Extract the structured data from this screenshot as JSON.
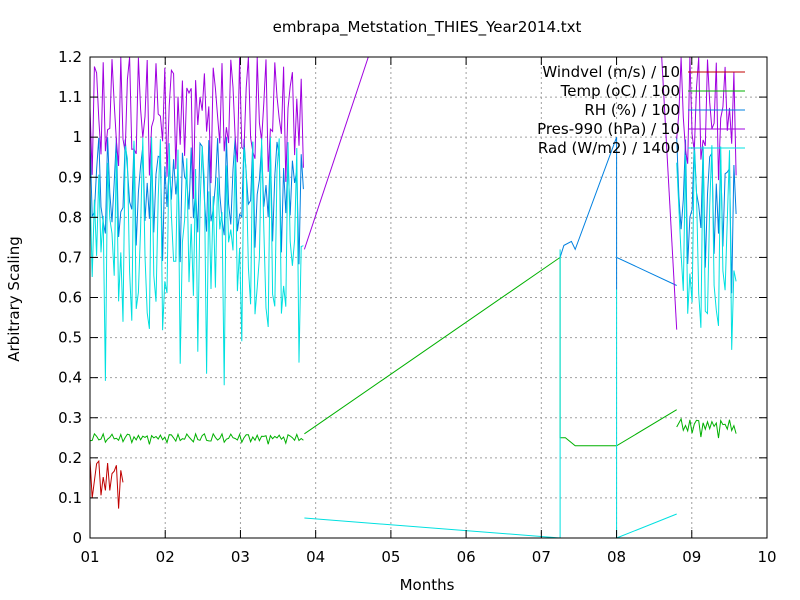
{
  "chart_data": {
    "type": "line",
    "title": "embrapa_Metstation_THIES_Year2014.txt",
    "xlabel": "Months",
    "ylabel": "Arbitrary Scaling",
    "xlim": [
      1,
      10
    ],
    "ylim": [
      0,
      1.2
    ],
    "x_ticks": [
      {
        "value": 1,
        "label": "01"
      },
      {
        "value": 2,
        "label": "02"
      },
      {
        "value": 3,
        "label": "03"
      },
      {
        "value": 4,
        "label": "04"
      },
      {
        "value": 5,
        "label": "05"
      },
      {
        "value": 6,
        "label": "06"
      },
      {
        "value": 7,
        "label": "07"
      },
      {
        "value": 8,
        "label": "08"
      },
      {
        "value": 9,
        "label": "09"
      },
      {
        "value": 10,
        "label": "10"
      }
    ],
    "y_ticks": [
      {
        "value": 0,
        "label": "0"
      },
      {
        "value": 0.1,
        "label": "0.1"
      },
      {
        "value": 0.2,
        "label": "0.2"
      },
      {
        "value": 0.3,
        "label": "0.3"
      },
      {
        "value": 0.4,
        "label": "0.4"
      },
      {
        "value": 0.5,
        "label": "0.5"
      },
      {
        "value": 0.6,
        "label": "0.6"
      },
      {
        "value": 0.7,
        "label": "0.7"
      },
      {
        "value": 0.8,
        "label": "0.8"
      },
      {
        "value": 0.9,
        "label": "0.9"
      },
      {
        "value": 1,
        "label": "1"
      },
      {
        "value": 1.1,
        "label": "1.1"
      },
      {
        "value": 1.2,
        "label": "1.2"
      }
    ],
    "grid": true,
    "legend_position": "top-right",
    "series": [
      {
        "name": "Windvel (m/s) / 10",
        "color": "#c00000",
        "segments": [
          {
            "mode": "band",
            "x_start": 1.0,
            "x_end": 1.45,
            "low": 0.0,
            "high": 0.2
          },
          {
            "mode": "points",
            "x": [
              1.45,
              3.85,
              7.25,
              8.0,
              8.8,
              9.6
            ],
            "y": [
              0.0,
              0.0,
              0.0,
              0.0,
              0.0,
              0.0
            ]
          }
        ]
      },
      {
        "name": "Temp (oC) / 100",
        "color": "#00b000",
        "segments": [
          {
            "mode": "band",
            "x_start": 1.0,
            "x_end": 3.85,
            "low": 0.22,
            "high": 0.26
          },
          {
            "mode": "points",
            "x": [
              3.85,
              7.25,
              7.25,
              7.32,
              7.45,
              8.0,
              8.8
            ],
            "y": [
              0.26,
              0.7,
              0.25,
              0.25,
              0.23,
              0.23,
              0.32
            ]
          },
          {
            "mode": "band",
            "x_start": 8.8,
            "x_end": 9.6,
            "low": 0.22,
            "high": 0.3
          }
        ]
      },
      {
        "name": "RH (%) / 100",
        "color": "#0080e0",
        "segments": [
          {
            "mode": "band",
            "x_start": 1.0,
            "x_end": 3.85,
            "low": 0.5,
            "high": 1.0
          },
          {
            "mode": "points",
            "x": [
              7.25,
              7.3,
              7.4,
              7.45,
              8.0,
              8.0,
              8.0,
              8.8
            ],
            "y": [
              0.7,
              0.73,
              0.74,
              0.72,
              1.0,
              0.62,
              0.7,
              0.63
            ]
          },
          {
            "mode": "band",
            "x_start": 8.8,
            "x_end": 9.6,
            "low": 0.4,
            "high": 1.0
          }
        ]
      },
      {
        "name": "Pres-990 (hPa) / 10",
        "color": "#a000e0",
        "segments": [
          {
            "mode": "band",
            "x_start": 1.0,
            "x_end": 3.85,
            "low": 0.65,
            "high": 1.2
          },
          {
            "mode": "points",
            "x": [
              3.85,
              4.7
            ],
            "y": [
              0.72,
              1.2
            ]
          },
          {
            "mode": "points",
            "x": [
              8.6,
              8.8
            ],
            "y": [
              1.2,
              0.52
            ]
          },
          {
            "mode": "band",
            "x_start": 8.8,
            "x_end": 9.6,
            "low": 0.65,
            "high": 1.2
          }
        ]
      },
      {
        "name": "Rad (W/m2) / 1400",
        "color": "#00e0e0",
        "segments": [
          {
            "mode": "band",
            "x_start": 1.0,
            "x_end": 3.85,
            "low": 0.0,
            "high": 1.0
          },
          {
            "mode": "points",
            "x": [
              3.85,
              7.25,
              7.25,
              7.25,
              8.0,
              8.0,
              8.0,
              8.8
            ],
            "y": [
              0.05,
              0.0,
              0.72,
              0.0,
              0.0,
              0.62,
              0.0,
              0.06
            ]
          },
          {
            "mode": "band",
            "x_start": 8.8,
            "x_end": 9.6,
            "low": 0.0,
            "high": 0.98
          }
        ]
      }
    ]
  }
}
